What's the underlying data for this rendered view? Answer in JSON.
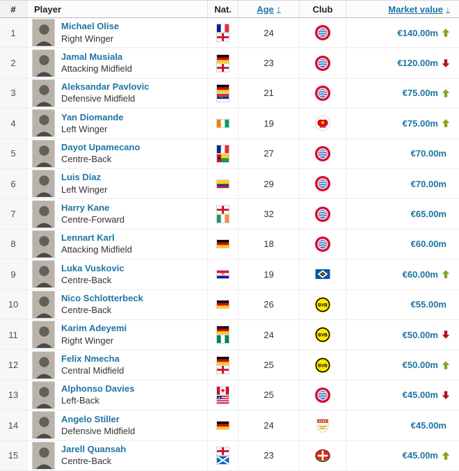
{
  "colors": {
    "link": "#1d75a3",
    "trend_up": "#7daa1c",
    "trend_down": "#b0151c"
  },
  "table": {
    "headers": {
      "rank": "#",
      "player": "Player",
      "nat": "Nat.",
      "age": "Age",
      "club": "Club",
      "value": "Market value"
    },
    "sort_icons": {
      "age": "↕",
      "value": "↓"
    },
    "rows": [
      {
        "rank": "1",
        "name": "Michael Olise",
        "position": "Right Winger",
        "nationalities": [
          "France",
          "England"
        ],
        "age": "24",
        "club": "Bayern Munich",
        "value": "€140.00m",
        "trend": "up"
      },
      {
        "rank": "2",
        "name": "Jamal Musiala",
        "position": "Attacking Midfield",
        "nationalities": [
          "Germany",
          "England"
        ],
        "age": "23",
        "club": "Bayern Munich",
        "value": "€120.00m",
        "trend": "down"
      },
      {
        "rank": "3",
        "name": "Aleksandar Pavlovic",
        "position": "Defensive Midfield",
        "nationalities": [
          "Germany",
          "Serbia"
        ],
        "age": "21",
        "club": "Bayern Munich",
        "value": "€75.00m",
        "trend": "up"
      },
      {
        "rank": "4",
        "name": "Yan Diomande",
        "position": "Left Winger",
        "nationalities": [
          "Ivory Coast"
        ],
        "age": "19",
        "club": "RB Leipzig",
        "value": "€75.00m",
        "trend": "up"
      },
      {
        "rank": "5",
        "name": "Dayot Upamecano",
        "position": "Centre-Back",
        "nationalities": [
          "France",
          "Guinea-Bissau"
        ],
        "age": "27",
        "club": "Bayern Munich",
        "value": "€70.00m",
        "trend": null
      },
      {
        "rank": "6",
        "name": "Luis Díaz",
        "position": "Left Winger",
        "nationalities": [
          "Colombia"
        ],
        "age": "29",
        "club": "Bayern Munich",
        "value": "€70.00m",
        "trend": null
      },
      {
        "rank": "7",
        "name": "Harry Kane",
        "position": "Centre-Forward",
        "nationalities": [
          "England",
          "Ireland"
        ],
        "age": "32",
        "club": "Bayern Munich",
        "value": "€65.00m",
        "trend": null
      },
      {
        "rank": "8",
        "name": "Lennart Karl",
        "position": "Attacking Midfield",
        "nationalities": [
          "Germany"
        ],
        "age": "18",
        "club": "Bayern Munich",
        "value": "€60.00m",
        "trend": null
      },
      {
        "rank": "9",
        "name": "Luka Vuskovic",
        "position": "Centre-Back",
        "nationalities": [
          "Croatia"
        ],
        "age": "19",
        "club": "Hamburger SV",
        "value": "€60.00m",
        "trend": "up"
      },
      {
        "rank": "10",
        "name": "Nico Schlotterbeck",
        "position": "Centre-Back",
        "nationalities": [
          "Germany"
        ],
        "age": "26",
        "club": "Borussia Dortmund",
        "value": "€55.00m",
        "trend": null
      },
      {
        "rank": "11",
        "name": "Karim Adeyemi",
        "position": "Right Winger",
        "nationalities": [
          "Germany",
          "Nigeria"
        ],
        "age": "24",
        "club": "Borussia Dortmund",
        "value": "€50.00m",
        "trend": "down"
      },
      {
        "rank": "12",
        "name": "Felix Nmecha",
        "position": "Central Midfield",
        "nationalities": [
          "Germany",
          "England"
        ],
        "age": "25",
        "club": "Borussia Dortmund",
        "value": "€50.00m",
        "trend": "up"
      },
      {
        "rank": "13",
        "name": "Alphonso Davies",
        "position": "Left-Back",
        "nationalities": [
          "Canada",
          "Liberia"
        ],
        "age": "25",
        "club": "Bayern Munich",
        "value": "€45.00m",
        "trend": "down"
      },
      {
        "rank": "14",
        "name": "Angelo Stiller",
        "position": "Defensive Midfield",
        "nationalities": [
          "Germany"
        ],
        "age": "24",
        "club": "VfB Stuttgart",
        "value": "€45.00m",
        "trend": null
      },
      {
        "rank": "15",
        "name": "Jarell Quansah",
        "position": "Centre-Back",
        "nationalities": [
          "England",
          "Scotland"
        ],
        "age": "23",
        "club": "Bayer 04 Leverkusen",
        "value": "€45.00m",
        "trend": "up"
      }
    ]
  }
}
